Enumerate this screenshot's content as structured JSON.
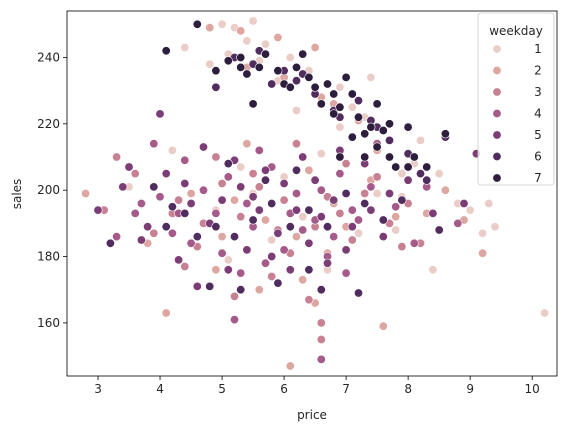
{
  "chart_data": {
    "type": "scatter",
    "xlabel": "price",
    "ylabel": "sales",
    "xlim": [
      2.5,
      10.4
    ],
    "ylim": [
      144,
      254
    ],
    "xticks": [
      3,
      4,
      5,
      6,
      7,
      8,
      9,
      10
    ],
    "yticks": [
      160,
      180,
      200,
      220,
      240
    ],
    "grid": false,
    "legend": {
      "title": "weekday",
      "placement": "top-right"
    },
    "series": [
      {
        "name": "1",
        "color": "#ebcdc7",
        "points": [
          [
            5.0,
            250
          ],
          [
            5.2,
            249
          ],
          [
            5.5,
            251
          ],
          [
            5.4,
            245
          ],
          [
            5.7,
            244
          ],
          [
            5.1,
            241
          ],
          [
            5.6,
            239
          ],
          [
            4.8,
            238
          ],
          [
            6.1,
            240
          ],
          [
            6.4,
            236
          ],
          [
            6.9,
            231
          ],
          [
            7.1,
            225
          ],
          [
            7.4,
            234
          ],
          [
            7.3,
            222
          ],
          [
            7.7,
            215
          ],
          [
            7.9,
            205
          ],
          [
            8.0,
            203
          ],
          [
            8.2,
            215
          ],
          [
            8.5,
            205
          ],
          [
            8.8,
            196
          ],
          [
            9.0,
            194
          ],
          [
            9.2,
            187
          ],
          [
            9.3,
            196
          ],
          [
            9.4,
            189
          ],
          [
            10.2,
            163
          ],
          [
            8.4,
            176
          ],
          [
            7.9,
            198
          ],
          [
            6.2,
            224
          ],
          [
            6.9,
            219
          ],
          [
            5.9,
            233
          ],
          [
            4.4,
            243
          ],
          [
            3.5,
            201
          ],
          [
            4.2,
            212
          ],
          [
            5.3,
            207
          ],
          [
            6.6,
            211
          ],
          [
            7.5,
            199
          ],
          [
            5.8,
            185
          ],
          [
            6.3,
            192
          ],
          [
            4.9,
            194
          ],
          [
            5.5,
            199
          ],
          [
            6.0,
            204
          ],
          [
            7.2,
            187
          ],
          [
            6.7,
            176
          ],
          [
            4.6,
            183
          ],
          [
            5.1,
            179
          ],
          [
            7.8,
            188
          ],
          [
            8.1,
            208
          ]
        ]
      },
      {
        "name": "2",
        "color": "#dea6a0",
        "points": [
          [
            4.8,
            249
          ],
          [
            5.3,
            248
          ],
          [
            5.9,
            246
          ],
          [
            6.5,
            243
          ],
          [
            5.4,
            237
          ],
          [
            6.0,
            234
          ],
          [
            6.6,
            228
          ],
          [
            6.8,
            226
          ],
          [
            7.2,
            221
          ],
          [
            7.5,
            212
          ],
          [
            8.0,
            207
          ],
          [
            8.3,
            193
          ],
          [
            8.9,
            191
          ],
          [
            9.2,
            181
          ],
          [
            7.6,
            159
          ],
          [
            6.1,
            147
          ],
          [
            2.8,
            199
          ],
          [
            4.1,
            163
          ],
          [
            3.8,
            184
          ],
          [
            4.9,
            176
          ],
          [
            5.6,
            170
          ],
          [
            6.3,
            173
          ],
          [
            6.7,
            181
          ],
          [
            7.0,
            189
          ],
          [
            5.2,
            197
          ],
          [
            6.4,
            206
          ],
          [
            5.0,
            186
          ],
          [
            5.7,
            191
          ],
          [
            6.8,
            196
          ],
          [
            7.4,
            203
          ],
          [
            4.5,
            199
          ],
          [
            6.2,
            186
          ],
          [
            5.4,
            214
          ],
          [
            7.8,
            192
          ],
          [
            8.6,
            200
          ],
          [
            6.5,
            166
          ]
        ]
      },
      {
        "name": "3",
        "color": "#c78193",
        "points": [
          [
            3.3,
            210
          ],
          [
            3.1,
            194
          ],
          [
            3.6,
            205
          ],
          [
            4.2,
            193
          ],
          [
            4.7,
            190
          ],
          [
            5.0,
            202
          ],
          [
            5.5,
            205
          ],
          [
            6.0,
            197
          ],
          [
            6.5,
            189
          ],
          [
            6.9,
            193
          ],
          [
            7.3,
            199
          ],
          [
            7.7,
            190
          ],
          [
            8.2,
            184
          ],
          [
            4.4,
            177
          ],
          [
            5.2,
            168
          ],
          [
            5.8,
            174
          ],
          [
            6.4,
            167
          ],
          [
            6.6,
            160
          ],
          [
            7.1,
            185
          ],
          [
            5.6,
            201
          ],
          [
            4.9,
            210
          ],
          [
            6.2,
            214
          ],
          [
            7.0,
            208
          ],
          [
            3.9,
            187
          ],
          [
            4.6,
            183
          ],
          [
            5.3,
            192
          ],
          [
            6.1,
            181
          ],
          [
            6.7,
            198
          ],
          [
            7.5,
            204
          ],
          [
            8.0,
            196
          ],
          [
            5.9,
            188
          ],
          [
            4.3,
            197
          ],
          [
            6.6,
            155
          ],
          [
            7.9,
            183
          ]
        ]
      },
      {
        "name": "4",
        "color": "#a65a8a",
        "points": [
          [
            3.3,
            186
          ],
          [
            3.7,
            196
          ],
          [
            4.0,
            198
          ],
          [
            4.3,
            193
          ],
          [
            4.7,
            200
          ],
          [
            5.1,
            204
          ],
          [
            5.4,
            196
          ],
          [
            5.8,
            207
          ],
          [
            6.2,
            199
          ],
          [
            6.5,
            191
          ],
          [
            6.8,
            186
          ],
          [
            7.1,
            194
          ],
          [
            7.4,
            201
          ],
          [
            7.8,
            195
          ],
          [
            8.1,
            184
          ],
          [
            4.5,
            184
          ],
          [
            5.0,
            181
          ],
          [
            5.3,
            175
          ],
          [
            5.7,
            178
          ],
          [
            6.0,
            182
          ],
          [
            6.3,
            188
          ],
          [
            6.7,
            180
          ],
          [
            7.0,
            175
          ],
          [
            3.9,
            214
          ],
          [
            4.4,
            209
          ],
          [
            5.6,
            212
          ],
          [
            6.9,
            205
          ],
          [
            7.5,
            214
          ],
          [
            8.3,
            201
          ],
          [
            8.8,
            190
          ],
          [
            3.6,
            193
          ],
          [
            4.2,
            187
          ],
          [
            4.9,
            193
          ],
          [
            5.5,
            189
          ],
          [
            6.1,
            193
          ],
          [
            6.6,
            200
          ],
          [
            7.2,
            191
          ],
          [
            6.6,
            149
          ],
          [
            5.2,
            161
          ]
        ]
      },
      {
        "name": "5",
        "color": "#7c3d77",
        "points": [
          [
            3.0,
            194
          ],
          [
            3.4,
            201
          ],
          [
            3.8,
            189
          ],
          [
            4.1,
            205
          ],
          [
            4.5,
            196
          ],
          [
            4.8,
            190
          ],
          [
            5.0,
            197
          ],
          [
            5.3,
            201
          ],
          [
            5.6,
            194
          ],
          [
            5.9,
            187
          ],
          [
            6.2,
            194
          ],
          [
            6.5,
            203
          ],
          [
            6.8,
            197
          ],
          [
            7.1,
            189
          ],
          [
            7.4,
            194
          ],
          [
            7.7,
            199
          ],
          [
            8.0,
            203
          ],
          [
            8.4,
            193
          ],
          [
            8.9,
            196
          ],
          [
            9.1,
            211
          ],
          [
            4.0,
            223
          ],
          [
            4.7,
            213
          ],
          [
            5.2,
            209
          ],
          [
            5.7,
            206
          ],
          [
            6.3,
            210
          ],
          [
            6.9,
            212
          ],
          [
            7.3,
            208
          ],
          [
            3.7,
            185
          ],
          [
            4.3,
            179
          ],
          [
            4.6,
            171
          ],
          [
            5.1,
            176
          ],
          [
            5.4,
            182
          ],
          [
            5.8,
            180
          ],
          [
            6.1,
            176
          ],
          [
            6.4,
            184
          ],
          [
            6.7,
            178
          ],
          [
            7.0,
            182
          ],
          [
            3.5,
            207
          ],
          [
            4.4,
            202
          ],
          [
            5.5,
            198
          ],
          [
            6.0,
            202
          ],
          [
            6.6,
            192
          ],
          [
            7.6,
            186
          ]
        ]
      },
      {
        "name": "6",
        "color": "#512c5f",
        "points": [
          [
            3.2,
            184
          ],
          [
            3.9,
            201
          ],
          [
            4.2,
            195
          ],
          [
            4.6,
            186
          ],
          [
            4.9,
            189
          ],
          [
            5.2,
            186
          ],
          [
            5.5,
            191
          ],
          [
            5.8,
            196
          ],
          [
            6.1,
            189
          ],
          [
            6.4,
            194
          ],
          [
            6.7,
            189
          ],
          [
            7.0,
            199
          ],
          [
            7.3,
            196
          ],
          [
            7.6,
            191
          ],
          [
            7.9,
            197
          ],
          [
            8.2,
            205
          ],
          [
            8.5,
            188
          ],
          [
            4.8,
            171
          ],
          [
            5.3,
            170
          ],
          [
            5.9,
            172
          ],
          [
            6.4,
            176
          ],
          [
            6.6,
            170
          ],
          [
            7.2,
            169
          ],
          [
            4.9,
            231
          ],
          [
            5.2,
            240
          ],
          [
            5.5,
            238
          ],
          [
            5.8,
            232
          ],
          [
            6.2,
            233
          ],
          [
            6.5,
            229
          ],
          [
            6.9,
            222
          ],
          [
            7.2,
            227
          ],
          [
            7.5,
            219
          ],
          [
            7.7,
            215
          ],
          [
            8.0,
            211
          ],
          [
            8.3,
            203
          ],
          [
            8.6,
            216
          ],
          [
            4.6,
            250
          ],
          [
            5.6,
            242
          ],
          [
            6.0,
            236
          ],
          [
            6.3,
            235
          ],
          [
            6.8,
            224
          ],
          [
            7.4,
            221
          ],
          [
            5.1,
            208
          ],
          [
            5.7,
            203
          ],
          [
            6.2,
            206
          ],
          [
            4.4,
            193
          ],
          [
            4.1,
            189
          ]
        ]
      },
      {
        "name": "7",
        "color": "#2d1e3e",
        "points": [
          [
            4.1,
            242
          ],
          [
            4.6,
            250
          ],
          [
            4.9,
            236
          ],
          [
            5.1,
            239
          ],
          [
            5.3,
            240
          ],
          [
            5.4,
            235
          ],
          [
            5.6,
            237
          ],
          [
            5.9,
            236
          ],
          [
            6.0,
            232
          ],
          [
            6.2,
            237
          ],
          [
            6.4,
            234
          ],
          [
            6.5,
            231
          ],
          [
            6.6,
            226
          ],
          [
            6.8,
            229
          ],
          [
            6.9,
            225
          ],
          [
            7.0,
            234
          ],
          [
            7.1,
            216
          ],
          [
            7.2,
            222
          ],
          [
            7.3,
            210
          ],
          [
            7.4,
            219
          ],
          [
            7.5,
            213
          ],
          [
            7.6,
            218
          ],
          [
            7.7,
            210
          ],
          [
            7.8,
            207
          ],
          [
            8.0,
            219
          ],
          [
            8.1,
            210
          ],
          [
            8.3,
            207
          ],
          [
            8.6,
            217
          ],
          [
            5.7,
            241
          ],
          [
            6.3,
            241
          ],
          [
            6.8,
            223
          ],
          [
            7.5,
            226
          ],
          [
            7.1,
            229
          ],
          [
            6.7,
            232
          ],
          [
            5.3,
            237
          ],
          [
            7.3,
            217
          ],
          [
            7.7,
            220
          ],
          [
            8.0,
            207
          ],
          [
            5.5,
            226
          ],
          [
            6.1,
            231
          ],
          [
            6.9,
            210
          ]
        ]
      }
    ]
  }
}
